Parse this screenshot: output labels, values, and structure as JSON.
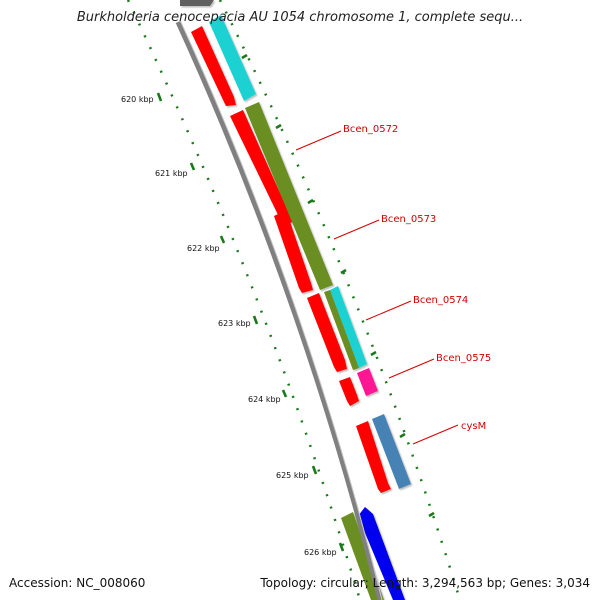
{
  "title": "Burkholderia cenocepacia AU 1054 chromosome 1, complete sequ...",
  "footer": {
    "accession": "Accession: NC_008060",
    "topology": "Topology: circular; Length: 3,294,563 bp; Genes: 3,034"
  },
  "ruler_labels": [
    "620 kbp",
    "621 kbp",
    "622 kbp",
    "623 kbp",
    "624 kbp",
    "625 kbp",
    "626 kbp"
  ],
  "gene_labels": [
    "Bcen_0572",
    "Bcen_0573",
    "Bcen_0574",
    "Bcen_0575",
    "cysM"
  ],
  "colors": {
    "red": "#ff0000",
    "cyan": "#1ad1d1",
    "olive": "#6b8e23",
    "magenta": "#ff1493",
    "steelblue": "#4682b4",
    "blue": "#0000ee",
    "backbone": "#808080",
    "ruler": "#1a7a1a",
    "label": "#d40000"
  }
}
